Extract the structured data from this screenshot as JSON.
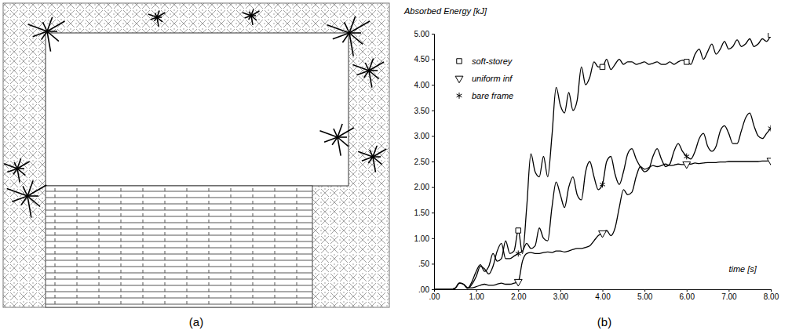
{
  "figure": {
    "panel_labels": [
      "(a)",
      "(b)"
    ]
  },
  "chart_data": {
    "type": "line",
    "ylabel": "Absorbed Energy [kJ]",
    "xlabel": "time [s]",
    "xlim": [
      0,
      8
    ],
    "ylim": [
      0,
      5
    ],
    "xticks": [
      {
        "value": 0,
        "label": ".00"
      },
      {
        "value": 1,
        "label": "1.00"
      },
      {
        "value": 2,
        "label": "2.00"
      },
      {
        "value": 3,
        "label": "3.00"
      },
      {
        "value": 4,
        "label": "4.00"
      },
      {
        "value": 5,
        "label": "5.00"
      },
      {
        "value": 6,
        "label": "6.00"
      },
      {
        "value": 7,
        "label": "7.00"
      },
      {
        "value": 8,
        "label": "8.00"
      }
    ],
    "yticks": [
      {
        "value": 0,
        "label": ".00"
      },
      {
        "value": 0.5,
        "label": ".50"
      },
      {
        "value": 1,
        "label": "1.00"
      },
      {
        "value": 1.5,
        "label": "1.50"
      },
      {
        "value": 2,
        "label": "2.00"
      },
      {
        "value": 2.5,
        "label": "2.50"
      },
      {
        "value": 3,
        "label": "3.00"
      },
      {
        "value": 3.5,
        "label": "3.50"
      },
      {
        "value": 4,
        "label": "4.00"
      },
      {
        "value": 4.5,
        "label": "4.50"
      },
      {
        "value": 5,
        "label": "5.00"
      }
    ],
    "grid": false,
    "legend": "upper left",
    "x": [
      0,
      0.1,
      0.2,
      0.3,
      0.4,
      0.5,
      0.6,
      0.7,
      0.8,
      0.9,
      1.0,
      1.1,
      1.2,
      1.3,
      1.4,
      1.5,
      1.6,
      1.7,
      1.8,
      1.9,
      2.0,
      2.1,
      2.2,
      2.3,
      2.4,
      2.5,
      2.6,
      2.7,
      2.8,
      2.9,
      3.0,
      3.1,
      3.2,
      3.3,
      3.4,
      3.5,
      3.6,
      3.7,
      3.8,
      3.9,
      4.0,
      4.1,
      4.2,
      4.3,
      4.4,
      4.5,
      4.6,
      4.7,
      4.8,
      4.9,
      5.0,
      5.1,
      5.2,
      5.3,
      5.4,
      5.5,
      5.6,
      5.7,
      5.8,
      5.9,
      6.0,
      6.1,
      6.2,
      6.3,
      6.4,
      6.5,
      6.6,
      6.7,
      6.8,
      6.9,
      7.0,
      7.1,
      7.2,
      7.3,
      7.4,
      7.5,
      7.6,
      7.7,
      7.8,
      7.9,
      8.0
    ],
    "series": [
      {
        "name": "soft-storey",
        "color": "#000000",
        "marker": "square",
        "values": [
          0,
          0,
          0,
          0,
          0,
          0.02,
          0.12,
          0.1,
          0.02,
          0.15,
          0.35,
          0.48,
          0.35,
          0.45,
          0.7,
          0.55,
          0.6,
          0.95,
          0.7,
          0.75,
          1.15,
          0.7,
          1.6,
          2.65,
          2.3,
          2.2,
          2.6,
          2.2,
          3.0,
          3.95,
          3.6,
          3.45,
          3.85,
          3.5,
          3.7,
          4.35,
          4.0,
          4.15,
          4.45,
          4.35,
          4.35,
          4.5,
          4.3,
          4.4,
          4.5,
          4.4,
          4.45,
          4.45,
          4.4,
          4.42,
          4.45,
          4.4,
          4.42,
          4.45,
          4.4,
          4.4,
          4.45,
          4.4,
          4.45,
          4.48,
          4.45,
          4.4,
          4.6,
          4.7,
          4.5,
          4.65,
          4.8,
          4.6,
          4.7,
          4.85,
          4.7,
          4.75,
          4.88,
          4.75,
          4.8,
          4.9,
          4.75,
          4.8,
          4.9,
          4.85,
          4.98
        ]
      },
      {
        "name": "uniform inf",
        "color": "#000000",
        "marker": "triangle-down",
        "values": [
          0,
          0,
          0,
          0,
          0,
          0.02,
          0.12,
          0.1,
          0.03,
          0.03,
          0.05,
          0.08,
          0.1,
          0.08,
          0.08,
          0.1,
          0.12,
          0.1,
          0.1,
          0.12,
          0.15,
          0.55,
          0.7,
          0.72,
          0.7,
          0.7,
          0.72,
          0.73,
          0.72,
          0.75,
          0.75,
          0.73,
          0.75,
          0.78,
          0.8,
          0.8,
          0.82,
          0.85,
          0.95,
          1.05,
          1.1,
          1.15,
          1.05,
          1.2,
          1.6,
          1.95,
          1.85,
          1.9,
          2.2,
          2.4,
          2.35,
          2.38,
          2.42,
          2.4,
          2.42,
          2.45,
          2.42,
          2.43,
          2.45,
          2.44,
          2.45,
          2.45,
          2.47,
          2.46,
          2.47,
          2.48,
          2.48,
          2.48,
          2.49,
          2.49,
          2.5,
          2.5,
          2.5,
          2.5,
          2.5,
          2.5,
          2.5,
          2.5,
          2.51,
          2.51,
          2.52
        ]
      },
      {
        "name": "bare frame",
        "color": "#000000",
        "marker": "asterisk",
        "values": [
          0,
          0,
          0,
          0,
          0,
          0.02,
          0.12,
          0.1,
          0.02,
          0.1,
          0.25,
          0.45,
          0.4,
          0.3,
          0.45,
          0.75,
          0.9,
          0.6,
          0.6,
          0.65,
          0.7,
          0.75,
          0.9,
          0.8,
          0.85,
          1.2,
          1.0,
          0.95,
          1.6,
          2.1,
          1.85,
          1.6,
          2.0,
          2.2,
          1.85,
          1.75,
          2.3,
          2.5,
          2.2,
          1.95,
          2.05,
          2.5,
          2.6,
          2.25,
          2.05,
          2.3,
          2.65,
          2.75,
          2.55,
          2.4,
          2.3,
          2.35,
          2.6,
          2.75,
          2.55,
          2.4,
          2.45,
          2.7,
          2.85,
          2.7,
          2.6,
          2.55,
          2.7,
          2.95,
          3.05,
          2.8,
          2.7,
          2.8,
          3.1,
          3.2,
          3.05,
          2.85,
          2.85,
          3.1,
          3.35,
          3.45,
          3.2,
          3.0,
          2.95,
          3.05,
          3.15
        ]
      }
    ]
  }
}
